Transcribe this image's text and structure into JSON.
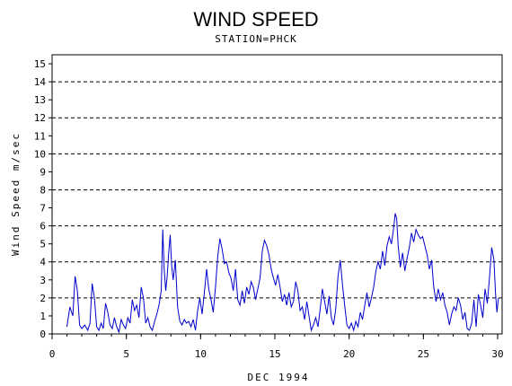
{
  "chart_data": {
    "type": "line",
    "title": "WIND SPEED",
    "subtitle": "STATION=PHCK",
    "xlabel": "DEC 1994",
    "ylabel": "Wind Speed m/sec",
    "xlim": [
      0,
      30.3
    ],
    "ylim": [
      0,
      15.5
    ],
    "xticks": [
      0,
      5,
      10,
      15,
      20,
      25,
      30
    ],
    "yticks": [
      0,
      1,
      2,
      3,
      4,
      5,
      6,
      7,
      8,
      9,
      10,
      11,
      12,
      13,
      14,
      15
    ],
    "gridlines_y": [
      2,
      4,
      6,
      8,
      10,
      12,
      14
    ],
    "grid": "dashed horizontal at even values",
    "line_color": "#0000cc",
    "series": [
      {
        "values": [
          [
            1.0,
            0.4
          ],
          [
            1.2,
            1.5
          ],
          [
            1.4,
            1.0
          ],
          [
            1.55,
            3.2
          ],
          [
            1.7,
            2.4
          ],
          [
            1.85,
            0.5
          ],
          [
            2.0,
            0.3
          ],
          [
            2.2,
            0.5
          ],
          [
            2.4,
            0.2
          ],
          [
            2.55,
            0.6
          ],
          [
            2.7,
            2.8
          ],
          [
            2.85,
            2.0
          ],
          [
            3.0,
            0.4
          ],
          [
            3.15,
            0.2
          ],
          [
            3.3,
            0.6
          ],
          [
            3.45,
            0.3
          ],
          [
            3.6,
            1.7
          ],
          [
            3.75,
            1.2
          ],
          [
            3.9,
            0.5
          ],
          [
            4.05,
            0.3
          ],
          [
            4.2,
            0.9
          ],
          [
            4.35,
            0.4
          ],
          [
            4.5,
            0.1
          ],
          [
            4.65,
            0.8
          ],
          [
            4.8,
            0.5
          ],
          [
            4.95,
            0.3
          ],
          [
            5.1,
            0.9
          ],
          [
            5.25,
            0.6
          ],
          [
            5.4,
            1.9
          ],
          [
            5.55,
            1.3
          ],
          [
            5.7,
            1.6
          ],
          [
            5.85,
            0.9
          ],
          [
            6.0,
            2.6
          ],
          [
            6.15,
            2.0
          ],
          [
            6.3,
            0.6
          ],
          [
            6.45,
            0.9
          ],
          [
            6.6,
            0.4
          ],
          [
            6.75,
            0.2
          ],
          [
            6.9,
            0.7
          ],
          [
            7.05,
            1.1
          ],
          [
            7.2,
            1.6
          ],
          [
            7.35,
            2.4
          ],
          [
            7.45,
            5.8
          ],
          [
            7.55,
            3.6
          ],
          [
            7.65,
            2.4
          ],
          [
            7.75,
            3.2
          ],
          [
            7.85,
            4.5
          ],
          [
            7.95,
            5.5
          ],
          [
            8.05,
            3.8
          ],
          [
            8.15,
            3.0
          ],
          [
            8.3,
            4.1
          ],
          [
            8.45,
            1.5
          ],
          [
            8.6,
            0.7
          ],
          [
            8.75,
            0.5
          ],
          [
            8.9,
            0.8
          ],
          [
            9.05,
            0.6
          ],
          [
            9.2,
            0.7
          ],
          [
            9.35,
            0.4
          ],
          [
            9.5,
            0.8
          ],
          [
            9.65,
            0.2
          ],
          [
            9.8,
            1.3
          ],
          [
            9.95,
            2.0
          ],
          [
            10.1,
            1.1
          ],
          [
            10.25,
            2.3
          ],
          [
            10.4,
            3.6
          ],
          [
            10.55,
            2.5
          ],
          [
            10.7,
            1.9
          ],
          [
            10.85,
            1.2
          ],
          [
            11.0,
            2.6
          ],
          [
            11.15,
            4.3
          ],
          [
            11.3,
            5.3
          ],
          [
            11.45,
            4.7
          ],
          [
            11.6,
            3.9
          ],
          [
            11.75,
            4.0
          ],
          [
            11.9,
            3.4
          ],
          [
            12.05,
            3.1
          ],
          [
            12.2,
            2.4
          ],
          [
            12.35,
            3.6
          ],
          [
            12.5,
            1.9
          ],
          [
            12.65,
            1.6
          ],
          [
            12.8,
            2.4
          ],
          [
            12.95,
            1.7
          ],
          [
            13.1,
            2.6
          ],
          [
            13.25,
            2.2
          ],
          [
            13.4,
            2.9
          ],
          [
            13.55,
            2.6
          ],
          [
            13.7,
            1.9
          ],
          [
            13.85,
            2.5
          ],
          [
            14.0,
            3.1
          ],
          [
            14.15,
            4.6
          ],
          [
            14.3,
            5.2
          ],
          [
            14.45,
            4.9
          ],
          [
            14.6,
            4.4
          ],
          [
            14.75,
            3.6
          ],
          [
            14.9,
            3.1
          ],
          [
            15.05,
            2.7
          ],
          [
            15.2,
            3.3
          ],
          [
            15.35,
            2.6
          ],
          [
            15.5,
            1.8
          ],
          [
            15.65,
            2.2
          ],
          [
            15.8,
            1.6
          ],
          [
            15.95,
            2.3
          ],
          [
            16.1,
            1.5
          ],
          [
            16.25,
            1.8
          ],
          [
            16.4,
            2.9
          ],
          [
            16.55,
            2.4
          ],
          [
            16.7,
            1.3
          ],
          [
            16.85,
            1.5
          ],
          [
            17.0,
            0.8
          ],
          [
            17.15,
            1.8
          ],
          [
            17.3,
            1.0
          ],
          [
            17.45,
            0.2
          ],
          [
            17.6,
            0.5
          ],
          [
            17.75,
            0.9
          ],
          [
            17.9,
            0.4
          ],
          [
            18.05,
            1.4
          ],
          [
            18.2,
            2.5
          ],
          [
            18.35,
            1.8
          ],
          [
            18.5,
            1.1
          ],
          [
            18.65,
            2.1
          ],
          [
            18.8,
            0.9
          ],
          [
            18.95,
            0.5
          ],
          [
            19.1,
            1.4
          ],
          [
            19.25,
            3.2
          ],
          [
            19.4,
            4.1
          ],
          [
            19.55,
            2.7
          ],
          [
            19.7,
            1.6
          ],
          [
            19.85,
            0.5
          ],
          [
            20.0,
            0.3
          ],
          [
            20.15,
            0.6
          ],
          [
            20.3,
            0.2
          ],
          [
            20.45,
            0.7
          ],
          [
            20.6,
            0.4
          ],
          [
            20.75,
            1.2
          ],
          [
            20.9,
            0.8
          ],
          [
            21.05,
            1.6
          ],
          [
            21.2,
            2.3
          ],
          [
            21.35,
            1.5
          ],
          [
            21.5,
            2.0
          ],
          [
            21.65,
            2.6
          ],
          [
            21.8,
            3.5
          ],
          [
            21.95,
            4.0
          ],
          [
            22.1,
            3.6
          ],
          [
            22.25,
            4.6
          ],
          [
            22.4,
            3.8
          ],
          [
            22.55,
            4.9
          ],
          [
            22.7,
            5.4
          ],
          [
            22.85,
            5.0
          ],
          [
            23.0,
            5.9
          ],
          [
            23.1,
            6.7
          ],
          [
            23.2,
            6.4
          ],
          [
            23.3,
            4.9
          ],
          [
            23.45,
            3.7
          ],
          [
            23.6,
            4.5
          ],
          [
            23.75,
            3.5
          ],
          [
            23.9,
            4.2
          ],
          [
            24.05,
            4.8
          ],
          [
            24.2,
            5.6
          ],
          [
            24.35,
            5.1
          ],
          [
            24.5,
            5.8
          ],
          [
            24.65,
            5.5
          ],
          [
            24.8,
            5.3
          ],
          [
            24.95,
            5.4
          ],
          [
            25.1,
            4.9
          ],
          [
            25.25,
            4.4
          ],
          [
            25.4,
            3.6
          ],
          [
            25.55,
            4.1
          ],
          [
            25.7,
            2.6
          ],
          [
            25.85,
            1.8
          ],
          [
            26.0,
            2.5
          ],
          [
            26.15,
            1.9
          ],
          [
            26.3,
            2.3
          ],
          [
            26.45,
            1.6
          ],
          [
            26.6,
            1.2
          ],
          [
            26.75,
            0.5
          ],
          [
            26.9,
            1.1
          ],
          [
            27.05,
            1.5
          ],
          [
            27.2,
            1.3
          ],
          [
            27.35,
            2.0
          ],
          [
            27.5,
            1.6
          ],
          [
            27.65,
            0.8
          ],
          [
            27.8,
            1.2
          ],
          [
            27.95,
            0.3
          ],
          [
            28.1,
            0.2
          ],
          [
            28.25,
            0.6
          ],
          [
            28.4,
            1.9
          ],
          [
            28.55,
            0.4
          ],
          [
            28.7,
            2.2
          ],
          [
            28.85,
            1.6
          ],
          [
            29.0,
            0.9
          ],
          [
            29.15,
            2.5
          ],
          [
            29.3,
            1.7
          ],
          [
            29.45,
            3.1
          ],
          [
            29.6,
            4.8
          ],
          [
            29.75,
            4.1
          ],
          [
            29.85,
            2.3
          ],
          [
            29.95,
            1.2
          ],
          [
            30.05,
            2.0
          ]
        ]
      }
    ]
  }
}
